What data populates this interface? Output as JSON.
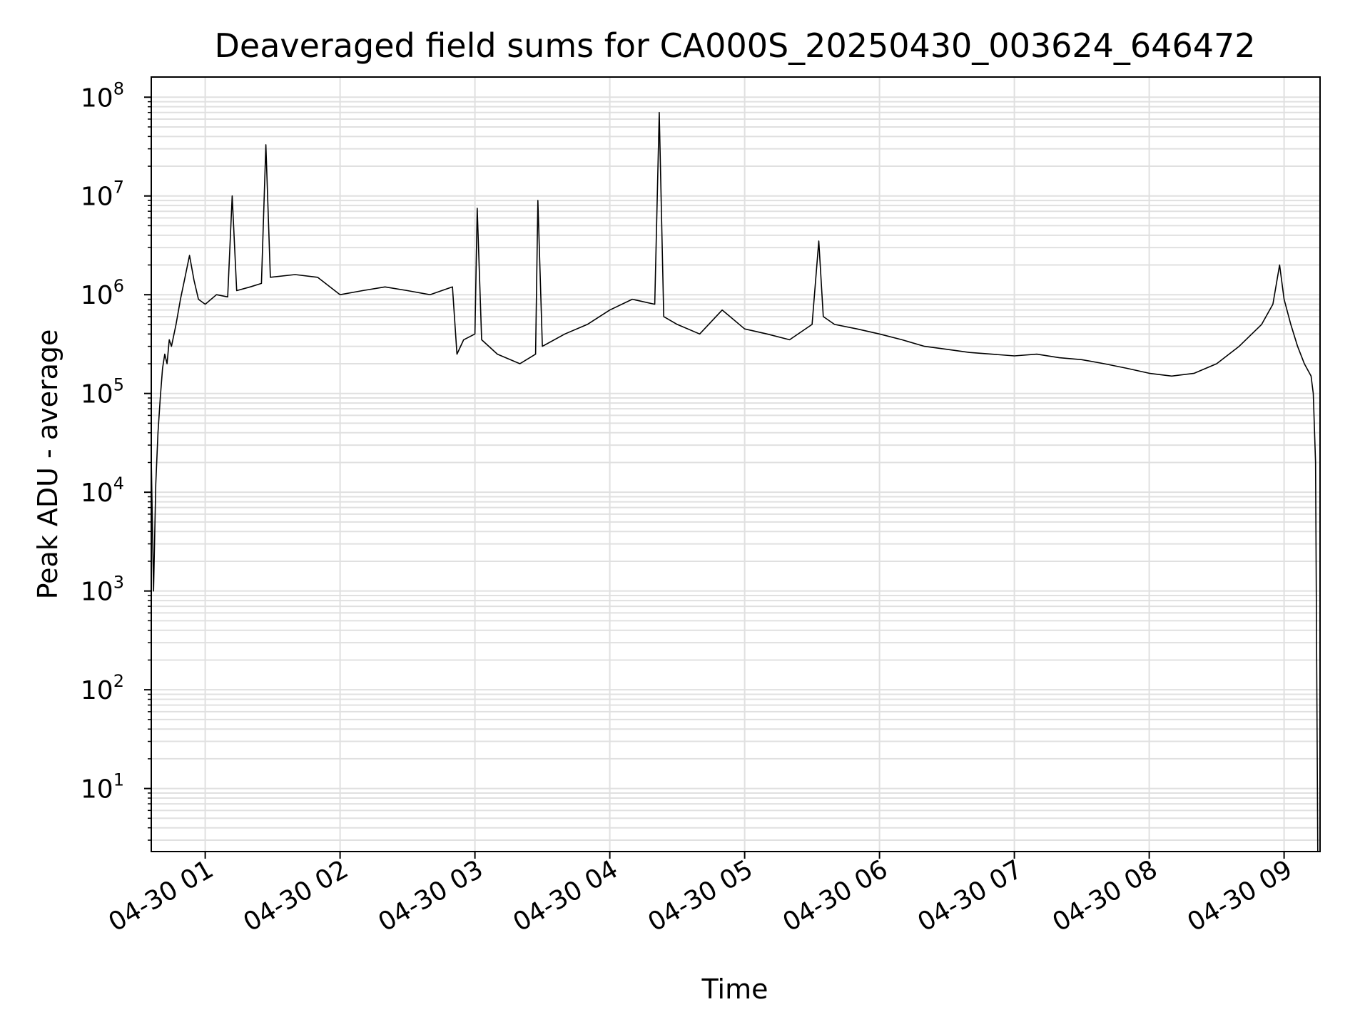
{
  "chart_data": {
    "type": "line",
    "title": "Deaveraged field sums for CA000S_20250430_003624_646472",
    "xlabel": "Time",
    "ylabel": "Peak ADU - average",
    "yscale": "log",
    "ylim": [
      2.3,
      160000000
    ],
    "xlim": [
      "04-30 00:36",
      "09:16"
    ],
    "grid": true,
    "x_tick_labels": [
      "04-30 01",
      "04-30 02",
      "04-30 03",
      "04-30 04",
      "04-30 05",
      "04-30 06",
      "04-30 07",
      "04-30 08",
      "04-30 09"
    ],
    "y_tick_labels": [
      {
        "base": "10",
        "exp": "1"
      },
      {
        "base": "10",
        "exp": "2"
      },
      {
        "base": "10",
        "exp": "3"
      },
      {
        "base": "10",
        "exp": "4"
      },
      {
        "base": "10",
        "exp": "5"
      },
      {
        "base": "10",
        "exp": "6"
      },
      {
        "base": "10",
        "exp": "7"
      },
      {
        "base": "10",
        "exp": "8"
      }
    ],
    "line_color": "#000000",
    "grid_color": "#e0e0e0",
    "series": [
      {
        "points": [
          [
            "00:36",
            22000
          ],
          [
            "00:37",
            1000
          ],
          [
            "00:38",
            12000
          ],
          [
            "00:39",
            40000
          ],
          [
            "00:40",
            90000
          ],
          [
            "00:41",
            180000
          ],
          [
            "00:42",
            250000
          ],
          [
            "00:43",
            200000
          ],
          [
            "00:44",
            350000
          ],
          [
            "00:45",
            300000
          ],
          [
            "00:47",
            500000
          ],
          [
            "00:49",
            900000
          ],
          [
            "00:51",
            1500000
          ],
          [
            "00:53",
            2500000
          ],
          [
            "00:55",
            1400000
          ],
          [
            "00:57",
            900000
          ],
          [
            "01:00",
            800000
          ],
          [
            "01:05",
            1000000
          ],
          [
            "01:10",
            950000
          ],
          [
            "01:12",
            10000000
          ],
          [
            "01:14",
            1100000
          ],
          [
            "01:20",
            1200000
          ],
          [
            "01:25",
            1300000
          ],
          [
            "01:27",
            33000000
          ],
          [
            "01:29",
            1500000
          ],
          [
            "01:40",
            1600000
          ],
          [
            "01:50",
            1500000
          ],
          [
            "02:00",
            1000000
          ],
          [
            "02:10",
            1100000
          ],
          [
            "02:20",
            1200000
          ],
          [
            "02:30",
            1100000
          ],
          [
            "02:40",
            1000000
          ],
          [
            "02:50",
            1200000
          ],
          [
            "02:52",
            250000
          ],
          [
            "02:55",
            350000
          ],
          [
            "03:00",
            400000
          ],
          [
            "03:01",
            7500000
          ],
          [
            "03:03",
            350000
          ],
          [
            "03:10",
            250000
          ],
          [
            "03:20",
            200000
          ],
          [
            "03:27",
            250000
          ],
          [
            "03:28",
            9000000
          ],
          [
            "03:30",
            300000
          ],
          [
            "03:40",
            400000
          ],
          [
            "03:50",
            500000
          ],
          [
            "04:00",
            700000
          ],
          [
            "04:10",
            900000
          ],
          [
            "04:20",
            800000
          ],
          [
            "04:22",
            70000000
          ],
          [
            "04:24",
            600000
          ],
          [
            "04:30",
            500000
          ],
          [
            "04:40",
            400000
          ],
          [
            "04:50",
            700000
          ],
          [
            "05:00",
            450000
          ],
          [
            "05:10",
            400000
          ],
          [
            "05:20",
            350000
          ],
          [
            "05:30",
            500000
          ],
          [
            "05:33",
            3500000
          ],
          [
            "05:35",
            600000
          ],
          [
            "05:40",
            500000
          ],
          [
            "05:50",
            450000
          ],
          [
            "06:00",
            400000
          ],
          [
            "06:10",
            350000
          ],
          [
            "06:20",
            300000
          ],
          [
            "06:30",
            280000
          ],
          [
            "06:40",
            260000
          ],
          [
            "06:50",
            250000
          ],
          [
            "07:00",
            240000
          ],
          [
            "07:10",
            250000
          ],
          [
            "07:20",
            230000
          ],
          [
            "07:30",
            220000
          ],
          [
            "07:40",
            200000
          ],
          [
            "07:50",
            180000
          ],
          [
            "08:00",
            160000
          ],
          [
            "08:10",
            150000
          ],
          [
            "08:20",
            160000
          ],
          [
            "08:30",
            200000
          ],
          [
            "08:40",
            300000
          ],
          [
            "08:50",
            500000
          ],
          [
            "08:55",
            800000
          ],
          [
            "08:58",
            2000000
          ],
          [
            "09:00",
            900000
          ],
          [
            "09:03",
            500000
          ],
          [
            "09:06",
            300000
          ],
          [
            "09:09",
            200000
          ],
          [
            "09:12",
            150000
          ],
          [
            "09:13",
            100000
          ],
          [
            "09:14",
            20000
          ],
          [
            "09:15",
            2.3
          ]
        ]
      }
    ]
  }
}
